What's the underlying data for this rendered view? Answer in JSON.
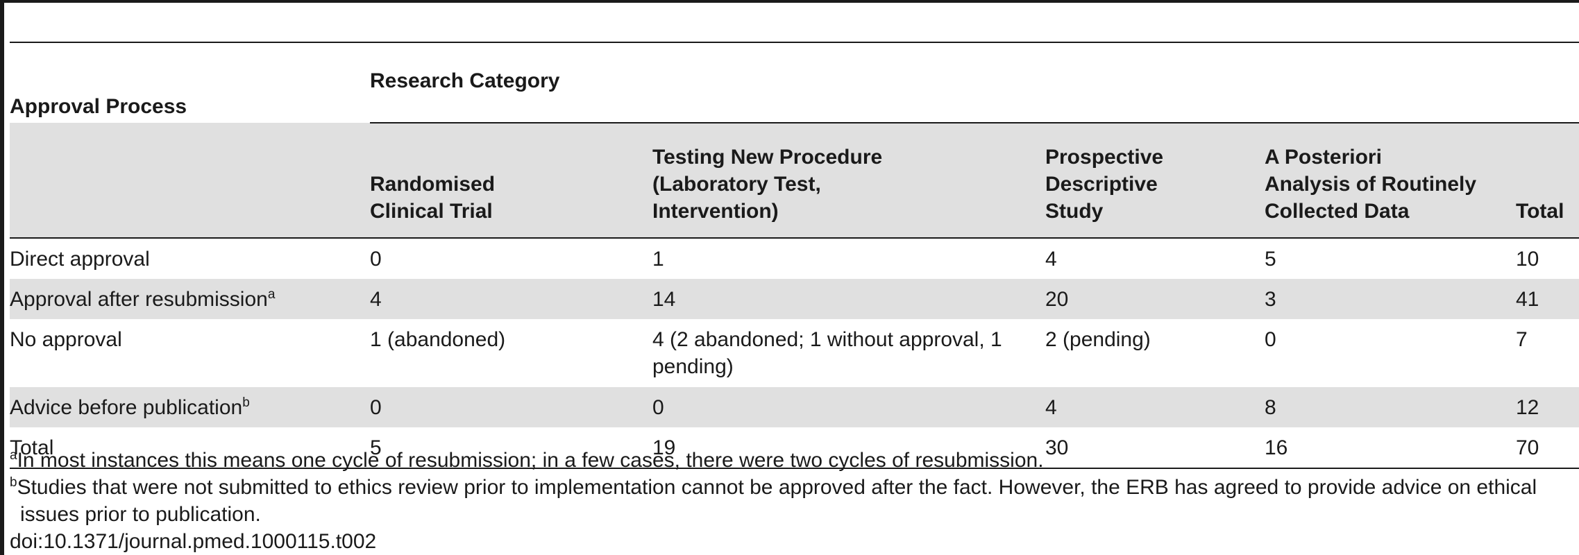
{
  "table": {
    "header": {
      "approval_process": "Approval Process",
      "research_category": "Research Category",
      "columns": [
        [
          "Randomised",
          "Clinical Trial"
        ],
        [
          "Testing New Procedure",
          "(Laboratory Test,",
          "Intervention)"
        ],
        [
          "Prospective",
          "Descriptive",
          "Study"
        ],
        [
          "A Posteriori",
          "Analysis of Routinely",
          "Collected Data"
        ],
        [
          "Total"
        ]
      ]
    },
    "rows": [
      {
        "label": "Direct approval",
        "sup": "",
        "cells": [
          "0",
          "1",
          "4",
          "5",
          "10"
        ]
      },
      {
        "label": "Approval after resubmission",
        "sup": "a",
        "cells": [
          "4",
          "14",
          "20",
          "3",
          "41"
        ]
      },
      {
        "label": "No approval",
        "sup": "",
        "cells": [
          "1 (abandoned)",
          "4 (2 abandoned; 1 without approval, 1 pending)",
          "2 (pending)",
          "0",
          "7"
        ]
      },
      {
        "label": "Advice before publication",
        "sup": "b",
        "cells": [
          "0",
          "0",
          "4",
          "8",
          "12"
        ]
      },
      {
        "label": "Total",
        "sup": "",
        "cells": [
          "5",
          "19",
          "30",
          "16",
          "70"
        ]
      }
    ]
  },
  "footnotes": {
    "a": {
      "mark": "a",
      "text": "In most instances this means one cycle of resubmission; in a few cases, there were two cycles of resubmission."
    },
    "b": {
      "mark": "b",
      "text_line1": "Studies that were not submitted to ethics review prior to implementation cannot be approved after the fact. However, the ERB has agreed to provide advice on ethical",
      "text_line2": "issues prior to publication."
    }
  },
  "doi": "doi:10.1371/journal.pmed.1000115.t002"
}
